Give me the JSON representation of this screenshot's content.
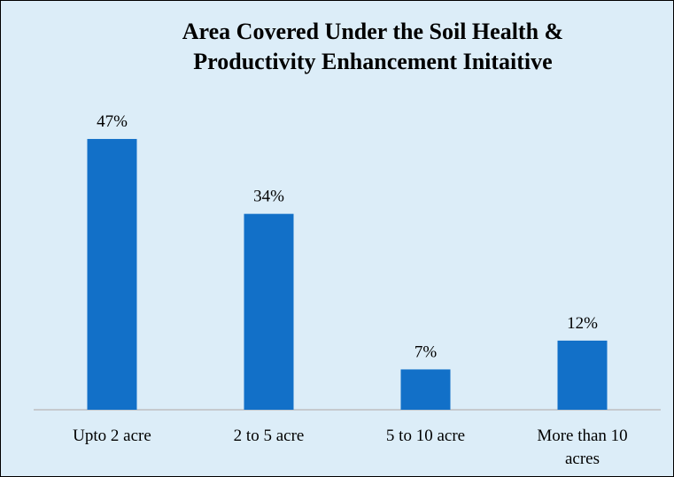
{
  "chart_data": {
    "type": "bar",
    "title": "Area Covered Under the Soil Health & Productivity Enhancement Initaitive",
    "categories": [
      "Upto 2 acre",
      "2 to 5 acre",
      "5 to 10 acre",
      "More than 10 acres"
    ],
    "values": [
      47,
      34,
      7,
      12
    ],
    "value_labels": [
      "47%",
      "34%",
      "7%",
      "12%"
    ],
    "color": "#1270c8"
  }
}
